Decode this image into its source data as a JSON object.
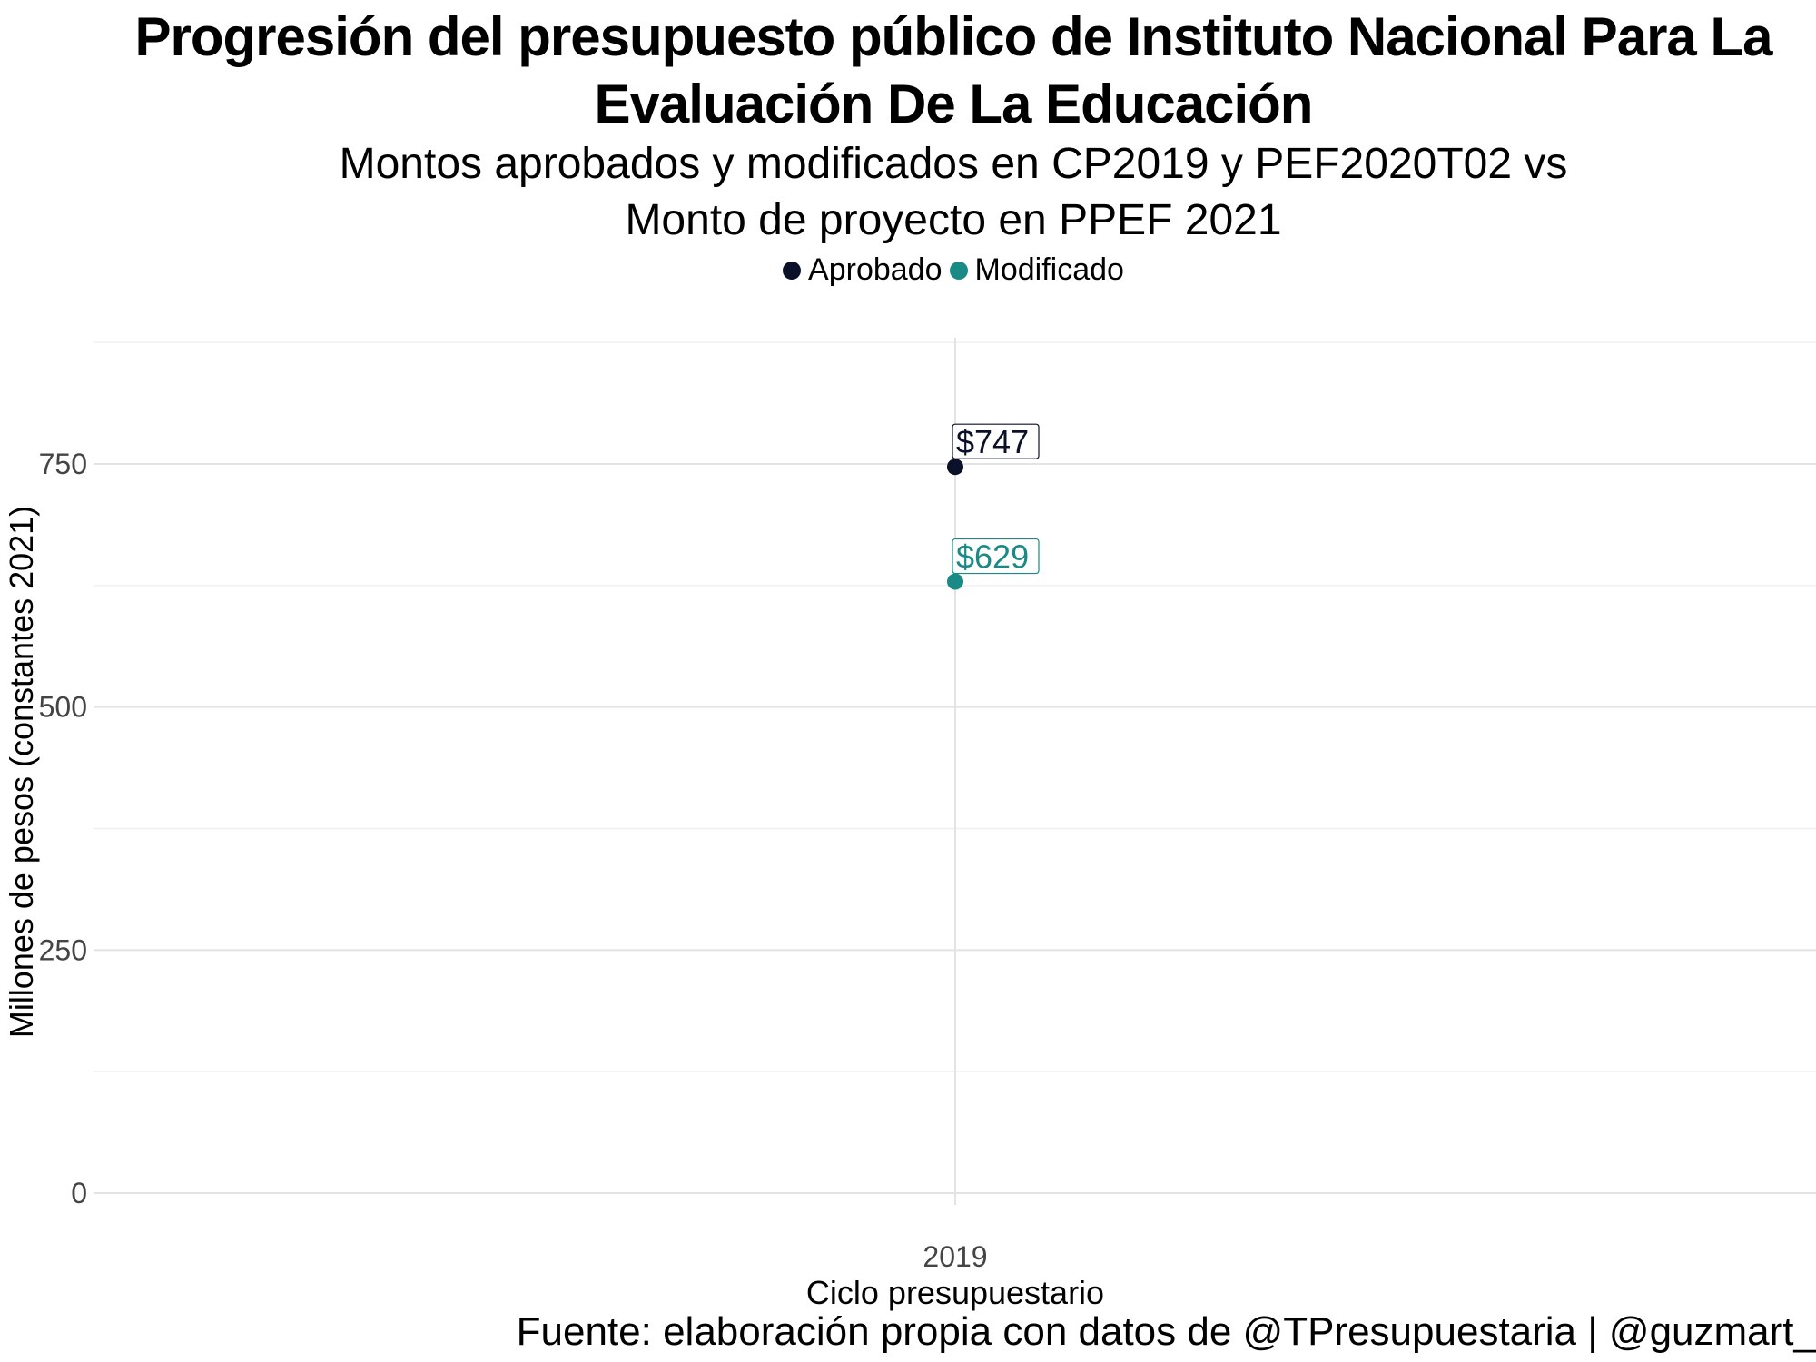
{
  "chart_data": {
    "type": "scatter",
    "title": "Progresión del presupuesto público de Instituto Nacional Para La Evaluación De La Educación",
    "subtitle_line1": "Montos aprobados y modificados en CP2019 y PEF2020T02 vs",
    "subtitle_line2": "Monto de proyecto en PPEF 2021",
    "xlabel": "Ciclo presupuestario",
    "ylabel": "Millones de pesos (constantes 2021)",
    "caption": "Fuente: elaboración propia con datos de @TPresupuestaria | @guzmart_",
    "categories": [
      "2019"
    ],
    "y_ticks": [
      0,
      250,
      500,
      750
    ],
    "ylim": [
      0,
      890
    ],
    "grid": true,
    "legend_position": "top",
    "series": [
      {
        "name": "Aprobado",
        "color": "#0b1128",
        "values": [
          747
        ],
        "labels": [
          "$747"
        ]
      },
      {
        "name": "Modificado",
        "color": "#1a8a86",
        "values": [
          629
        ],
        "labels": [
          "$629"
        ]
      }
    ]
  }
}
